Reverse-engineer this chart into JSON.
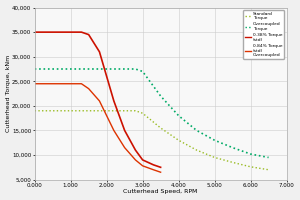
{
  "title": "",
  "xlabel": "Cutterhead Speed, RPM",
  "ylabel": "Cutterhead Torque, kNm",
  "xlim": [
    0.0,
    7.0
  ],
  "ylim": [
    5000,
    40000
  ],
  "yticks": [
    5000,
    10000,
    15000,
    20000,
    25000,
    30000,
    35000,
    40000
  ],
  "xticks": [
    0.0,
    1.0,
    2.0,
    3.0,
    4.0,
    5.0,
    6.0,
    7.0
  ],
  "xtick_labels": [
    "0.000",
    "1.000",
    "2.000",
    "3.000",
    "4.000",
    "5.000",
    "6.000",
    "7.000"
  ],
  "ytick_labels": [
    "5,000",
    "10,000",
    "15,000",
    "20,000",
    "25,000",
    "30,000",
    "35,000",
    "40,000"
  ],
  "series": [
    {
      "label": "Standard\nTorque",
      "color": "#99bb22",
      "style": ":",
      "linewidth": 1.0,
      "markersize": 0.8,
      "x": [
        0.0,
        0.3,
        1.0,
        1.5,
        2.0,
        2.5,
        2.8,
        3.0,
        3.5,
        4.0,
        4.5,
        5.0,
        5.5,
        6.0,
        6.5
      ],
      "y": [
        19000,
        19000,
        19000,
        19000,
        19000,
        19000,
        19000,
        18500,
        15500,
        13000,
        11000,
        9500,
        8500,
        7600,
        7000
      ]
    },
    {
      "label": "Overcoupled\nTorque",
      "color": "#00aa66",
      "style": ":",
      "linewidth": 1.2,
      "markersize": 0.8,
      "x": [
        0.0,
        0.3,
        1.0,
        1.5,
        2.0,
        2.5,
        2.8,
        3.0,
        3.5,
        4.0,
        4.5,
        5.0,
        5.5,
        6.0,
        6.5
      ],
      "y": [
        27500,
        27500,
        27500,
        27500,
        27500,
        27500,
        27500,
        27000,
        22000,
        18000,
        15000,
        13000,
        11500,
        10200,
        9500
      ]
    },
    {
      "label": "0.38% Torque\n(std)",
      "color": "#cc1100",
      "style": "-",
      "linewidth": 1.2,
      "markersize": 0,
      "x": [
        0.0,
        0.5,
        1.0,
        1.3,
        1.5,
        1.8,
        2.0,
        2.2,
        2.5,
        2.8,
        3.0,
        3.3,
        3.5
      ],
      "y": [
        35000,
        35000,
        35000,
        35000,
        34500,
        31000,
        26000,
        21000,
        15000,
        11000,
        9000,
        8000,
        7500
      ]
    },
    {
      "label": "0.84% Torque\n(std)\nOvercoupled",
      "color": "#dd3300",
      "style": "-",
      "linewidth": 1.0,
      "markersize": 0,
      "x": [
        0.0,
        0.5,
        1.0,
        1.3,
        1.5,
        1.8,
        2.0,
        2.2,
        2.5,
        2.8,
        3.0,
        3.3,
        3.5
      ],
      "y": [
        24500,
        24500,
        24500,
        24500,
        23500,
        21000,
        18000,
        15000,
        11500,
        9000,
        7800,
        7000,
        6500
      ]
    }
  ],
  "legend_labels": [
    "Standard\nTorque",
    "Overcoupled\nTorque",
    "0.38% Torque\n(std)",
    "0.84% Torque\n(std)\nOvercoupled"
  ],
  "legend_colors": [
    "#99bb22",
    "#00aa66",
    "#cc1100",
    "#dd3300"
  ],
  "legend_styles": [
    ":",
    ":",
    "-",
    "-"
  ],
  "bg_color": "#f0f0f0",
  "plot_bg_color": "#f8f8f8",
  "grid_color": "#cccccc"
}
